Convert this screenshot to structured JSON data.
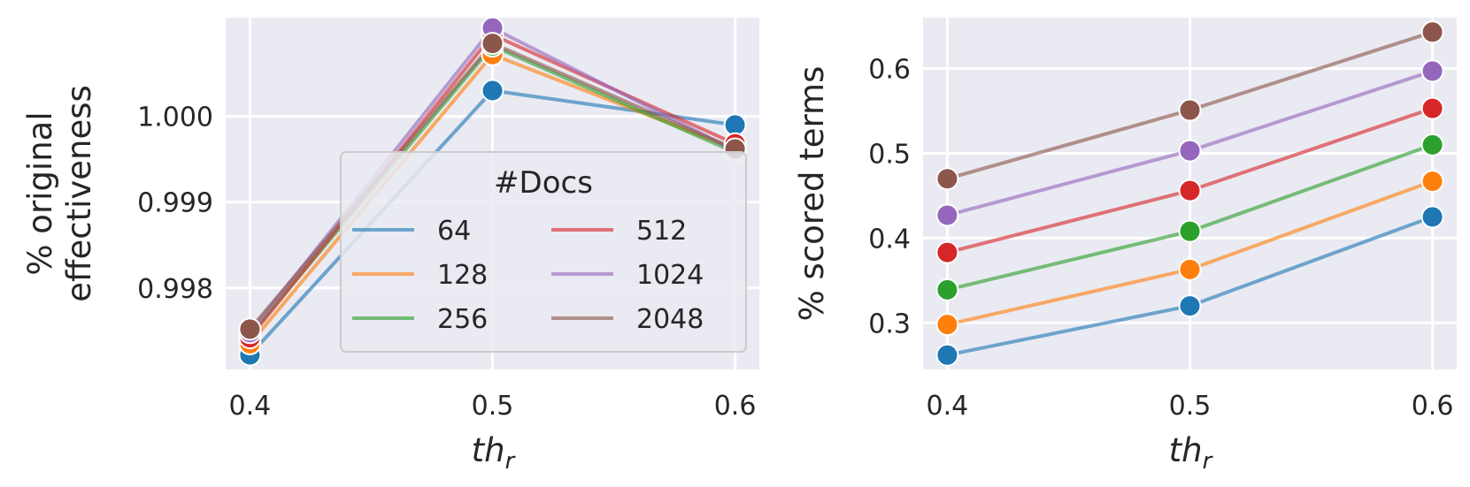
{
  "chart_data": [
    {
      "type": "line",
      "x": [
        0.4,
        0.5,
        0.6
      ],
      "xtick_labels": [
        "0.4",
        "0.5",
        "0.6"
      ],
      "xlabel_base": "th",
      "xlabel_sub": "r",
      "ylabel": [
        "% original",
        "effectiveness"
      ],
      "yticks": [
        0.998,
        0.999,
        1.0
      ],
      "ytick_labels": [
        "0.998",
        "0.999",
        "1.000"
      ],
      "ylim": [
        0.99705,
        1.00115
      ],
      "grid": true,
      "legend": {
        "title": "#Docs",
        "position": "center-right",
        "columns": 2
      },
      "series": [
        {
          "name": "64",
          "color": "#1f77b4",
          "values": [
            0.99722,
            1.0003,
            0.9999
          ]
        },
        {
          "name": "128",
          "color": "#ff7f0e",
          "values": [
            0.99735,
            1.00072,
            0.99962
          ]
        },
        {
          "name": "256",
          "color": "#2ca02c",
          "values": [
            0.99745,
            1.00082,
            0.99958
          ]
        },
        {
          "name": "512",
          "color": "#d62728",
          "values": [
            0.99742,
            1.00095,
            0.99968
          ]
        },
        {
          "name": "1024",
          "color": "#9467bd",
          "values": [
            0.99748,
            1.00103,
            0.9996
          ]
        },
        {
          "name": "2048",
          "color": "#8c564b",
          "values": [
            0.99752,
            1.00085,
            0.99962
          ]
        }
      ]
    },
    {
      "type": "line",
      "x": [
        0.4,
        0.5,
        0.6
      ],
      "xtick_labels": [
        "0.4",
        "0.5",
        "0.6"
      ],
      "xlabel_base": "th",
      "xlabel_sub": "r",
      "ylabel": [
        "% scored terms"
      ],
      "yticks": [
        0.3,
        0.4,
        0.5,
        0.6
      ],
      "ytick_labels": [
        "0.3",
        "0.4",
        "0.5",
        "0.6"
      ],
      "ylim": [
        0.245,
        0.66
      ],
      "grid": true,
      "series": [
        {
          "name": "64",
          "color": "#1f77b4",
          "values": [
            0.262,
            0.32,
            0.425
          ]
        },
        {
          "name": "128",
          "color": "#ff7f0e",
          "values": [
            0.298,
            0.363,
            0.467
          ]
        },
        {
          "name": "256",
          "color": "#2ca02c",
          "values": [
            0.339,
            0.408,
            0.51
          ]
        },
        {
          "name": "512",
          "color": "#d62728",
          "values": [
            0.383,
            0.456,
            0.553
          ]
        },
        {
          "name": "1024",
          "color": "#9467bd",
          "values": [
            0.427,
            0.503,
            0.597
          ]
        },
        {
          "name": "2048",
          "color": "#8c564b",
          "values": [
            0.47,
            0.551,
            0.643
          ]
        }
      ]
    }
  ]
}
